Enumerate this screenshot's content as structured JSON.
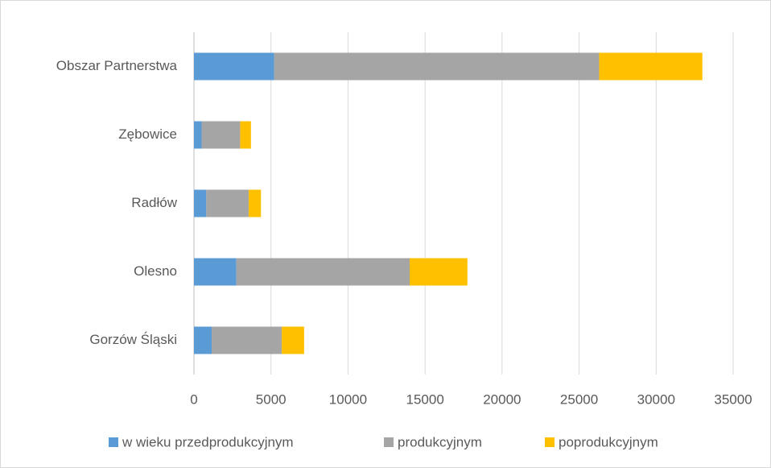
{
  "chart_data": {
    "type": "stacked_bar_horizontal",
    "categories": [
      "Obszar Partnerstwa",
      "Zębowice",
      "Radłów",
      "Olesno",
      "Gorzów Śląski"
    ],
    "series": [
      {
        "name": "w wieku przedprodukcyjnym",
        "color": "#5b9bd5",
        "values": [
          5200,
          500,
          800,
          2750,
          1150
        ]
      },
      {
        "name": "produkcyjnym",
        "color": "#a5a5a5",
        "values": [
          21100,
          2500,
          2750,
          11250,
          4550
        ]
      },
      {
        "name": "poprodukcyjnym",
        "color": "#ffc000",
        "values": [
          6700,
          700,
          800,
          3750,
          1450
        ]
      }
    ],
    "xlim": [
      0,
      35000
    ],
    "xticks": [
      0,
      5000,
      10000,
      15000,
      20000,
      25000,
      30000,
      35000
    ],
    "grid": true,
    "legend": "bottom"
  }
}
